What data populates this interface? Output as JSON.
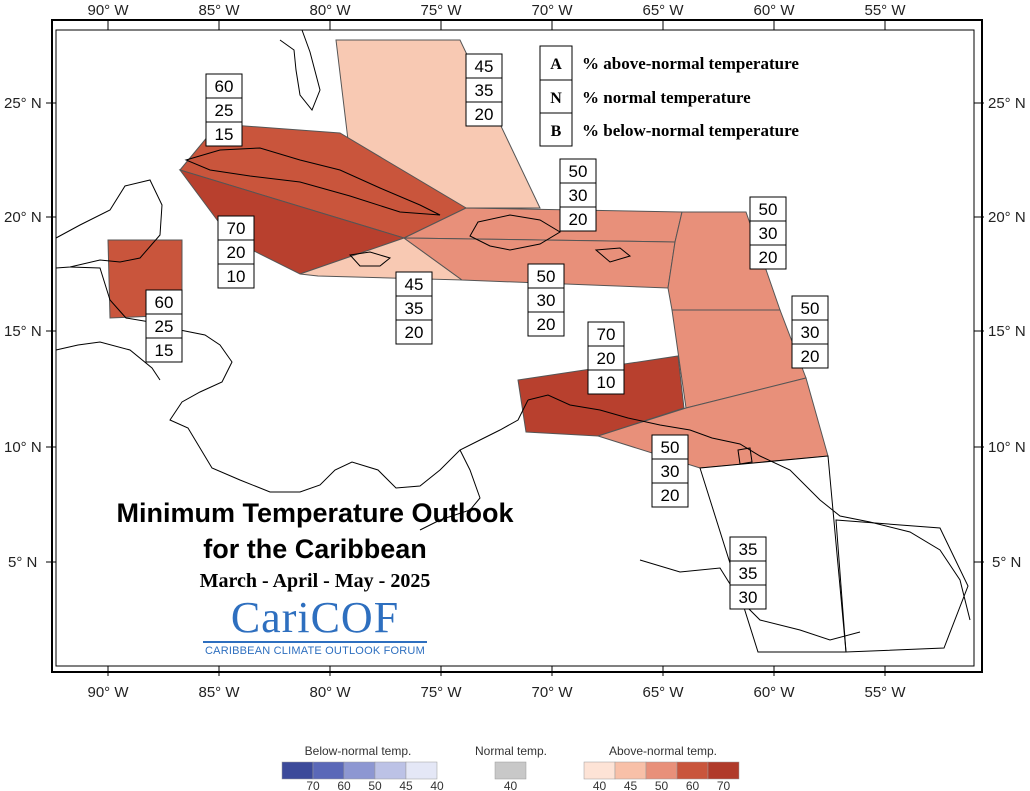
{
  "lon_ticks": [
    "90° W",
    "85° W",
    "80° W",
    "75° W",
    "70° W",
    "65° W",
    "60° W",
    "55° W"
  ],
  "lat_ticks": [
    "25° N",
    "20° N",
    "15° N",
    "10° N",
    "5° N"
  ],
  "key": {
    "A": "% above-normal temperature",
    "N": "% normal temperature",
    "B": "% below-normal temperature",
    "letters": [
      "A",
      "N",
      "B"
    ]
  },
  "title": {
    "line1": "Minimum Temperature Outlook",
    "line2": "for the Caribbean",
    "season": "March - April - May - 2025"
  },
  "logo": {
    "word": "CariCOF",
    "tagline": "CARIBBEAN CLIMATE OUTLOOK FORUM"
  },
  "regions": [
    {
      "name": "bahamas",
      "A": "45",
      "N": "35",
      "B": "20",
      "fill": "#f8c9b3"
    },
    {
      "name": "cuba-north",
      "A": "60",
      "N": "25",
      "B": "15",
      "fill": "#c9553c"
    },
    {
      "name": "cuba-south",
      "A": "70",
      "N": "20",
      "B": "10",
      "fill": "#b8402e"
    },
    {
      "name": "jamaica",
      "A": "45",
      "N": "35",
      "B": "20",
      "fill": "#f8c9b3"
    },
    {
      "name": "hispaniola-north",
      "A": "50",
      "N": "30",
      "B": "20",
      "fill": "#e8907a"
    },
    {
      "name": "hispaniola-pr",
      "A": "50",
      "N": "30",
      "B": "20",
      "fill": "#e8907a"
    },
    {
      "name": "belize",
      "A": "60",
      "N": "25",
      "B": "15",
      "fill": "#c9553c"
    },
    {
      "name": "abc-islands",
      "A": "70",
      "N": "20",
      "B": "10",
      "fill": "#b8402e"
    },
    {
      "name": "leeward-islands",
      "A": "50",
      "N": "30",
      "B": "20",
      "fill": "#e8907a"
    },
    {
      "name": "windward-islands",
      "A": "50",
      "N": "30",
      "B": "20",
      "fill": "#e8907a"
    },
    {
      "name": "trinidad",
      "A": "50",
      "N": "30",
      "B": "20",
      "fill": "#e8907a"
    },
    {
      "name": "guianas",
      "A": "35",
      "N": "35",
      "B": "30",
      "fill": "#ffffff"
    }
  ],
  "legend": {
    "below_title": "Below-normal temp.",
    "normal_title": "Normal temp.",
    "above_title": "Above-normal temp.",
    "below_labels": [
      "70",
      "60",
      "50",
      "45",
      "40"
    ],
    "normal_labels": [
      "40"
    ],
    "above_labels": [
      "40",
      "45",
      "50",
      "60",
      "70"
    ],
    "below_colors": [
      "#3c4a9a",
      "#5a68b8",
      "#8d97d2",
      "#bcc2e6",
      "#e4e7f6"
    ],
    "normal_colors": [
      "#c8c8c8"
    ],
    "above_colors": [
      "#fde3d6",
      "#f8c0a8",
      "#e8907a",
      "#c9553c",
      "#b03a2a"
    ]
  }
}
